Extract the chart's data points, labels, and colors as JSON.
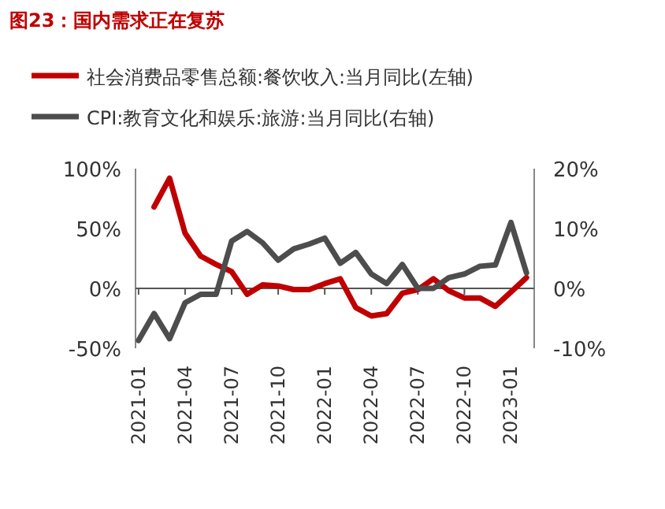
{
  "chart_data": {
    "type": "line",
    "title": "图23：国内需求正在复苏",
    "categories": [
      "2021-01",
      null,
      null,
      "2021-04",
      null,
      null,
      "2021-07",
      null,
      null,
      "2021-10",
      null,
      null,
      "2022-01",
      null,
      null,
      "2022-04",
      null,
      null,
      "2022-07",
      null,
      null,
      "2022-10",
      null,
      null,
      "2023-01",
      null
    ],
    "series": [
      {
        "name": "社会消费品零售总额:餐饮收入:当月同比(左轴)",
        "color": "#c00000",
        "values": [
          null,
          68,
          92,
          46,
          27,
          20,
          14,
          -5,
          3,
          2,
          -1,
          -1,
          4,
          8,
          -16,
          -23,
          -21,
          -4,
          -1,
          8,
          -2,
          -8,
          -8,
          -15,
          -3,
          9
        ]
      },
      {
        "name": "CPI:教育文化和娱乐:旅游:当月同比(右轴)",
        "color": "#4d4d4d",
        "axis": "y2",
        "values": [
          -8.7,
          -4.2,
          -8.4,
          -2.4,
          -1,
          -1,
          7.9,
          9.5,
          7.6,
          4.7,
          6.6,
          7.4,
          8.4,
          4.2,
          6,
          2.4,
          0.8,
          4,
          0,
          0,
          1.8,
          2.4,
          3.7,
          3.9,
          11,
          2.6
        ]
      }
    ],
    "ylim": [
      -50,
      100
    ],
    "yticks": [
      {
        "value": -50,
        "label": "-50%"
      },
      {
        "value": 0,
        "label": "0%"
      },
      {
        "value": 50,
        "label": "50%"
      },
      {
        "value": 100,
        "label": "100%"
      }
    ],
    "y2lim": [
      -10,
      20
    ],
    "y2ticks": [
      {
        "value": -10,
        "label": "-10%"
      },
      {
        "value": 0,
        "label": "0%"
      },
      {
        "value": 10,
        "label": "10%"
      },
      {
        "value": 20,
        "label": "20%"
      }
    ],
    "legend": "top",
    "marker": "none",
    "line_style": "solid"
  }
}
